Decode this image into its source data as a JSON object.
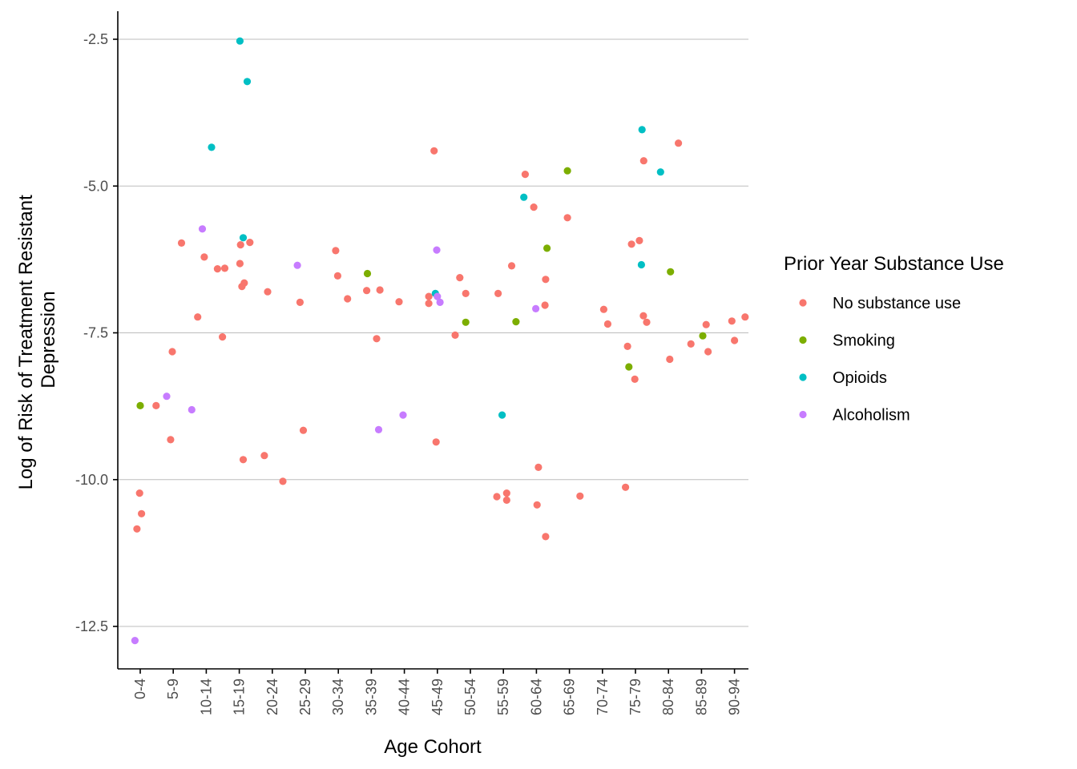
{
  "chart_data": {
    "type": "scatter",
    "title": "",
    "xlabel": "Age Cohort",
    "ylabel_lines": [
      "Log of Risk of Treatment Resistant",
      "Depression"
    ],
    "categories": [
      "0-4",
      "5-9",
      "10-14",
      "15-19",
      "20-24",
      "25-29",
      "30-34",
      "35-39",
      "40-44",
      "45-49",
      "50-54",
      "55-59",
      "60-64",
      "65-69",
      "70-74",
      "75-79",
      "80-84",
      "85-89",
      "90-94"
    ],
    "y_ticks": [
      -2.5,
      -5.0,
      -7.5,
      -10.0,
      -12.5
    ],
    "y_tick_labels": [
      "-2.5",
      "-5.0",
      "-7.5",
      "-10.0",
      "-12.5"
    ],
    "ylim": [
      -13.2,
      -2.0
    ],
    "grid": "horizontal major",
    "legend": {
      "title": "Prior Year Substance Use",
      "position": "right",
      "entries": [
        "No substance use",
        "Smoking",
        "Opioids",
        "Alcoholism"
      ]
    },
    "series": [
      {
        "name": "No substance use",
        "color": "#F8766D",
        "points": [
          {
            "x": 0.9,
            "y": -10.84
          },
          {
            "x": 0.98,
            "y": -10.23
          },
          {
            "x": 1.04,
            "y": -10.58
          },
          {
            "x": 1.48,
            "y": -8.74
          },
          {
            "x": 1.92,
            "y": -9.32
          },
          {
            "x": 1.97,
            "y": -7.82
          },
          {
            "x": 2.25,
            "y": -5.97
          },
          {
            "x": 2.74,
            "y": -7.23
          },
          {
            "x": 2.94,
            "y": -6.21
          },
          {
            "x": 3.34,
            "y": -6.41
          },
          {
            "x": 3.56,
            "y": -6.4
          },
          {
            "x": 3.49,
            "y": -7.57
          },
          {
            "x": 4.02,
            "y": -6.32
          },
          {
            "x": 4.04,
            "y": -6.0
          },
          {
            "x": 4.08,
            "y": -6.71
          },
          {
            "x": 4.15,
            "y": -6.65
          },
          {
            "x": 4.12,
            "y": -9.66
          },
          {
            "x": 4.32,
            "y": -5.96
          },
          {
            "x": 4.76,
            "y": -9.59
          },
          {
            "x": 4.86,
            "y": -6.8
          },
          {
            "x": 5.32,
            "y": -10.03
          },
          {
            "x": 5.84,
            "y": -6.98
          },
          {
            "x": 5.94,
            "y": -9.16
          },
          {
            "x": 6.92,
            "y": -6.1
          },
          {
            "x": 6.98,
            "y": -6.53
          },
          {
            "x": 7.28,
            "y": -6.92
          },
          {
            "x": 7.86,
            "y": -6.78
          },
          {
            "x": 8.16,
            "y": -7.6
          },
          {
            "x": 8.26,
            "y": -6.77
          },
          {
            "x": 8.84,
            "y": -6.97
          },
          {
            "x": 9.74,
            "y": -6.88
          },
          {
            "x": 9.74,
            "y": -7.0
          },
          {
            "x": 9.9,
            "y": -4.4
          },
          {
            "x": 9.96,
            "y": -9.36
          },
          {
            "x": 10.54,
            "y": -7.54
          },
          {
            "x": 10.68,
            "y": -6.56
          },
          {
            "x": 10.86,
            "y": -6.83
          },
          {
            "x": 11.84,
            "y": -6.83
          },
          {
            "x": 11.8,
            "y": -10.29
          },
          {
            "x": 12.1,
            "y": -10.23
          },
          {
            "x": 12.1,
            "y": -10.35
          },
          {
            "x": 12.25,
            "y": -6.36
          },
          {
            "x": 12.66,
            "y": -4.8
          },
          {
            "x": 12.92,
            "y": -5.36
          },
          {
            "x": 13.06,
            "y": -9.79
          },
          {
            "x": 13.02,
            "y": -10.43
          },
          {
            "x": 13.28,
            "y": -6.59
          },
          {
            "x": 13.26,
            "y": -7.03
          },
          {
            "x": 13.28,
            "y": -10.97
          },
          {
            "x": 13.94,
            "y": -5.54
          },
          {
            "x": 14.32,
            "y": -10.28
          },
          {
            "x": 15.04,
            "y": -7.1
          },
          {
            "x": 15.16,
            "y": -7.35
          },
          {
            "x": 15.76,
            "y": -7.73
          },
          {
            "x": 15.88,
            "y": -5.99
          },
          {
            "x": 15.98,
            "y": -8.29
          },
          {
            "x": 16.12,
            "y": -5.93
          },
          {
            "x": 16.24,
            "y": -7.21
          },
          {
            "x": 16.25,
            "y": -4.57
          },
          {
            "x": 16.34,
            "y": -7.32
          },
          {
            "x": 15.7,
            "y": -10.13
          },
          {
            "x": 17.04,
            "y": -7.95
          },
          {
            "x": 17.3,
            "y": -4.27
          },
          {
            "x": 17.68,
            "y": -7.69
          },
          {
            "x": 18.14,
            "y": -7.36
          },
          {
            "x": 18.2,
            "y": -7.82
          },
          {
            "x": 18.92,
            "y": -7.3
          },
          {
            "x": 19.0,
            "y": -7.63
          },
          {
            "x": 19.32,
            "y": -7.23
          }
        ]
      },
      {
        "name": "Smoking",
        "color": "#7CAE00",
        "points": [
          {
            "x": 1.0,
            "y": -8.74
          },
          {
            "x": 7.88,
            "y": -6.49
          },
          {
            "x": 10.86,
            "y": -7.32
          },
          {
            "x": 12.38,
            "y": -7.31
          },
          {
            "x": 13.32,
            "y": -6.06
          },
          {
            "x": 13.94,
            "y": -4.74
          },
          {
            "x": 15.8,
            "y": -8.08
          },
          {
            "x": 17.06,
            "y": -6.46
          },
          {
            "x": 18.04,
            "y": -7.55
          }
        ]
      },
      {
        "name": "Opioids",
        "color": "#00BFC4",
        "points": [
          {
            "x": 3.16,
            "y": -4.34
          },
          {
            "x": 4.02,
            "y": -2.53
          },
          {
            "x": 4.12,
            "y": -5.88
          },
          {
            "x": 4.24,
            "y": -3.22
          },
          {
            "x": 9.94,
            "y": -6.83
          },
          {
            "x": 11.96,
            "y": -8.9
          },
          {
            "x": 12.62,
            "y": -5.19
          },
          {
            "x": 16.2,
            "y": -4.04
          },
          {
            "x": 16.18,
            "y": -6.34
          },
          {
            "x": 16.76,
            "y": -4.76
          }
        ]
      },
      {
        "name": "Alcoholism",
        "color": "#C77CFF",
        "points": [
          {
            "x": 0.84,
            "y": -12.74
          },
          {
            "x": 1.8,
            "y": -8.58
          },
          {
            "x": 2.56,
            "y": -8.81
          },
          {
            "x": 2.88,
            "y": -5.73
          },
          {
            "x": 5.76,
            "y": -6.35
          },
          {
            "x": 8.22,
            "y": -9.15
          },
          {
            "x": 8.96,
            "y": -8.9
          },
          {
            "x": 9.98,
            "y": -6.09
          },
          {
            "x": 10.0,
            "y": -6.88
          },
          {
            "x": 10.08,
            "y": -6.98
          },
          {
            "x": 12.98,
            "y": -7.09
          }
        ]
      }
    ]
  }
}
